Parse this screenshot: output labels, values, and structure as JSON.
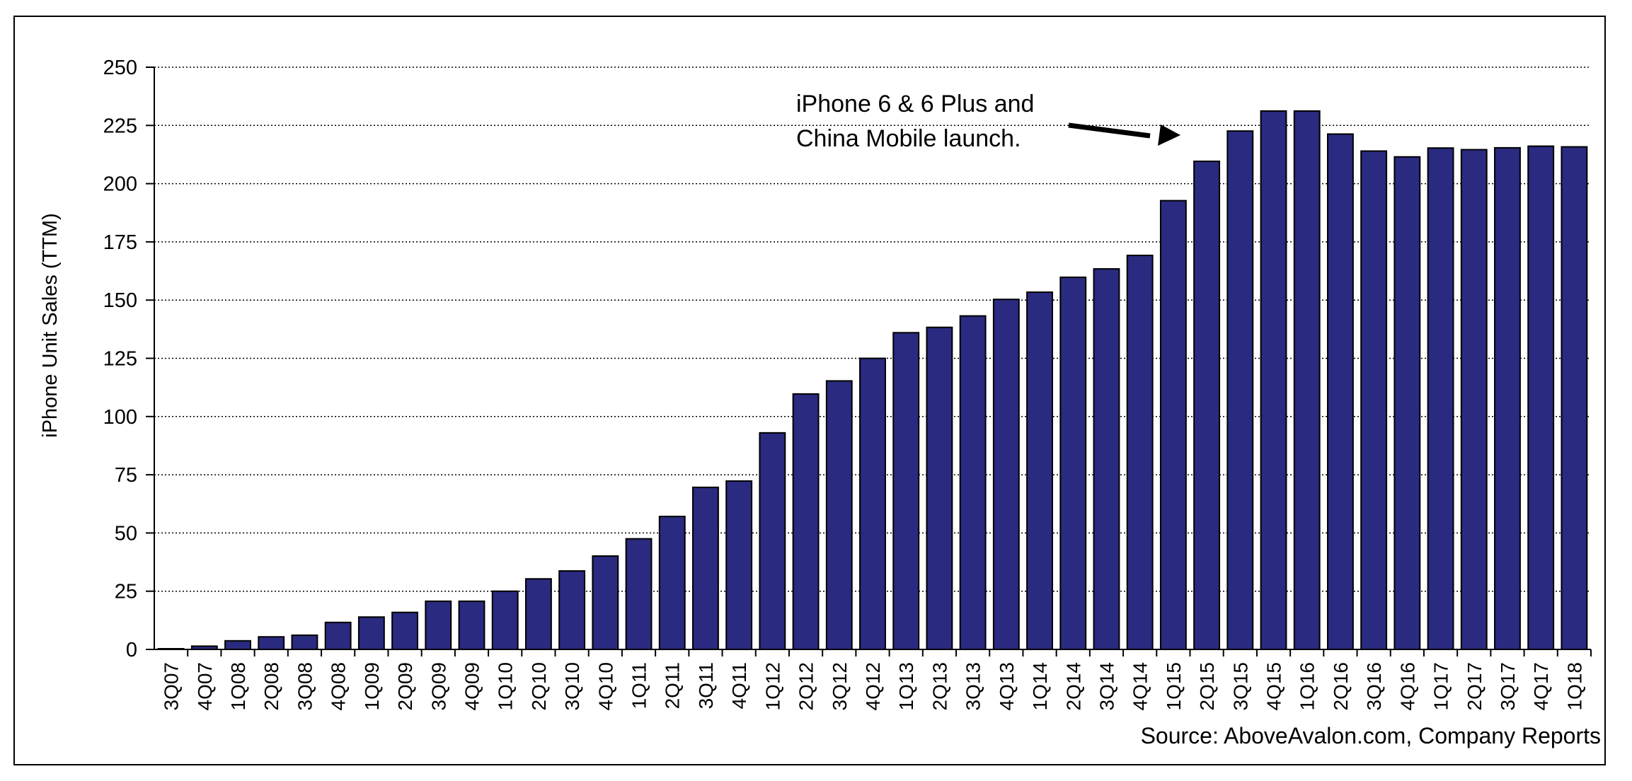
{
  "chart_data": {
    "type": "bar",
    "title": "",
    "xlabel": "",
    "ylabel": "iPhone Unit Sales (TTM)",
    "ylim": [
      0,
      250
    ],
    "yticks": [
      0,
      25,
      50,
      75,
      100,
      125,
      150,
      175,
      200,
      225,
      250
    ],
    "grid": true,
    "legend": "none",
    "bar_color": "#2a2a80",
    "categories": [
      "3Q07",
      "4Q07",
      "1Q08",
      "2Q08",
      "3Q08",
      "4Q08",
      "1Q09",
      "2Q09",
      "3Q09",
      "4Q09",
      "1Q10",
      "2Q10",
      "3Q10",
      "4Q10",
      "1Q11",
      "2Q11",
      "3Q11",
      "4Q11",
      "1Q12",
      "2Q12",
      "3Q12",
      "4Q12",
      "1Q13",
      "2Q13",
      "3Q13",
      "4Q13",
      "1Q14",
      "2Q14",
      "3Q14",
      "4Q14",
      "1Q15",
      "2Q15",
      "3Q15",
      "4Q15",
      "1Q16",
      "2Q16",
      "3Q16",
      "4Q16",
      "1Q17",
      "2Q17",
      "3Q17",
      "4Q17",
      "1Q18"
    ],
    "values": [
      0.3,
      1.4,
      3.7,
      5.4,
      6.1,
      11.6,
      13.9,
      15.9,
      20.7,
      20.7,
      25.0,
      30.3,
      33.7,
      40.1,
      47.5,
      57.1,
      69.6,
      72.3,
      93.0,
      109.7,
      115.3,
      125.0,
      136.0,
      138.3,
      143.2,
      150.3,
      153.4,
      159.8,
      163.4,
      169.2,
      192.7,
      209.6,
      222.6,
      231.2,
      231.2,
      221.3,
      214.0,
      211.5,
      215.3,
      214.6,
      215.4,
      216.1,
      215.8
    ],
    "annotations": [
      {
        "lines": [
          "iPhone 6 & 6 Plus and",
          "China Mobile launch."
        ],
        "points_to": "1Q15"
      }
    ],
    "source": "Source: AboveAvalon.com, Company Reports"
  }
}
